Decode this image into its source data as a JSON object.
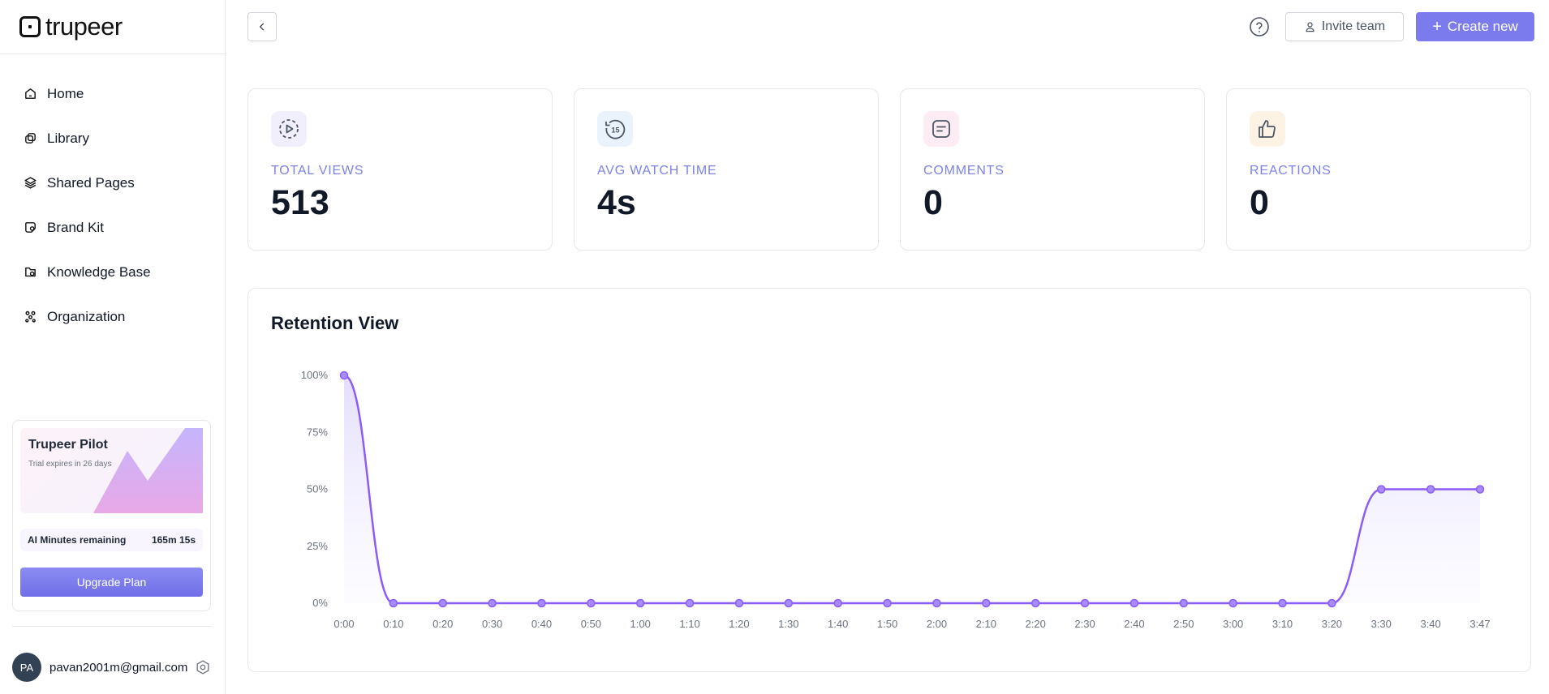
{
  "brand": {
    "name": "trupeer"
  },
  "sidebar": {
    "items": [
      {
        "label": "Home",
        "icon": "home-icon"
      },
      {
        "label": "Library",
        "icon": "library-icon"
      },
      {
        "label": "Shared Pages",
        "icon": "layers-icon"
      },
      {
        "label": "Brand Kit",
        "icon": "brand-kit-icon"
      },
      {
        "label": "Knowledge Base",
        "icon": "knowledge-base-icon"
      },
      {
        "label": "Organization",
        "icon": "organization-icon"
      }
    ],
    "pilot": {
      "title": "Trupeer Pilot",
      "subtitle": "Trial expires in 26 days",
      "minutes_label": "AI Minutes remaining",
      "minutes_value": "165m 15s",
      "upgrade_label": "Upgrade Plan"
    },
    "user": {
      "initials": "PA",
      "email": "pavan2001m@gmail.com"
    }
  },
  "header": {
    "invite_label": "Invite team",
    "create_label": "Create new"
  },
  "stats": [
    {
      "label": "TOTAL VIEWS",
      "value": "513",
      "icon": "play-circle-icon",
      "icon_bg": "#f1effb"
    },
    {
      "label": "AVG WATCH TIME",
      "value": "4s",
      "icon": "replay-15-icon",
      "icon_bg": "#eaf2fb"
    },
    {
      "label": "COMMENTS",
      "value": "0",
      "icon": "comment-icon",
      "icon_bg": "#fdecf3"
    },
    {
      "label": "REACTIONS",
      "value": "0",
      "icon": "thumbs-up-icon",
      "icon_bg": "#fdf3e4"
    }
  ],
  "retention": {
    "title": "Retention View"
  },
  "colors": {
    "accent": "#7b7bed",
    "line": "#8b5cf6",
    "label": "#7b83e6"
  },
  "chart_data": {
    "type": "area",
    "title": "Retention View",
    "xlabel": "",
    "ylabel": "",
    "x": [
      "0:00",
      "0:10",
      "0:20",
      "0:30",
      "0:40",
      "0:50",
      "1:00",
      "1:10",
      "1:20",
      "1:30",
      "1:40",
      "1:50",
      "2:00",
      "2:10",
      "2:20",
      "2:30",
      "2:40",
      "2:50",
      "3:00",
      "3:10",
      "3:20",
      "3:30",
      "3:40",
      "3:47"
    ],
    "values": [
      100,
      0,
      0,
      0,
      0,
      0,
      0,
      0,
      0,
      0,
      0,
      0,
      0,
      0,
      0,
      0,
      0,
      0,
      0,
      0,
      0,
      50,
      50,
      50
    ],
    "y_ticks": [
      "0%",
      "25%",
      "50%",
      "75%",
      "100%"
    ],
    "ylim": [
      0,
      100
    ],
    "grid": false,
    "legend": "none"
  }
}
